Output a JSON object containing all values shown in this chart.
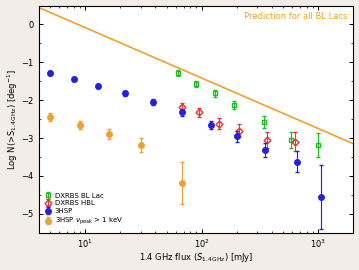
{
  "title": "Prediction for all BL Lacs",
  "xlim": [
    4,
    2000
  ],
  "ylim": [
    -5.5,
    0.5
  ],
  "line_color": "#f0a030",
  "line_x": [
    4,
    2000
  ],
  "line_y": [
    0.45,
    -3.15
  ],
  "dxrbs_bllac_x": [
    63,
    90,
    130,
    190,
    340,
    580,
    1000
  ],
  "dxrbs_bllac_y": [
    -1.28,
    -1.58,
    -1.82,
    -2.12,
    -2.58,
    -3.05,
    -3.18
  ],
  "dxrbs_bllac_yerr": [
    0.07,
    0.08,
    0.09,
    0.11,
    0.16,
    0.22,
    0.32
  ],
  "dxrbs_bllac_color": "#22bb22",
  "dxrbs_hbl_x": [
    68,
    95,
    140,
    210,
    360,
    630
  ],
  "dxrbs_hbl_y": [
    -2.18,
    -2.32,
    -2.62,
    -2.8,
    -3.05,
    -3.1
  ],
  "dxrbs_hbl_yerr": [
    0.11,
    0.12,
    0.14,
    0.17,
    0.2,
    0.25
  ],
  "dxrbs_hbl_color": "#ee3333",
  "hsp3_x": [
    5,
    8,
    13,
    22,
    38,
    68,
    120,
    200,
    350,
    650,
    1050
  ],
  "hsp3_y": [
    -1.28,
    -1.44,
    -1.62,
    -1.82,
    -2.05,
    -2.32,
    -2.65,
    -2.95,
    -3.32,
    -3.62,
    -4.55
  ],
  "hsp3_yerr_lo": [
    0.05,
    0.05,
    0.06,
    0.07,
    0.08,
    0.09,
    0.11,
    0.14,
    0.19,
    0.28,
    0.85
  ],
  "hsp3_yerr_hi": [
    0.05,
    0.05,
    0.06,
    0.07,
    0.08,
    0.09,
    0.11,
    0.14,
    0.19,
    0.28,
    0.85
  ],
  "hsp3_color": "#2222dd",
  "hsp3_1kev_x": [
    5,
    9,
    16,
    30,
    68
  ],
  "hsp3_1kev_y": [
    -2.45,
    -2.65,
    -2.9,
    -3.18,
    -4.18
  ],
  "hsp3_1kev_yerr_lo": [
    0.1,
    0.1,
    0.13,
    0.18,
    0.55
  ],
  "hsp3_1kev_yerr_hi": [
    0.1,
    0.1,
    0.13,
    0.18,
    0.55
  ],
  "hsp3_1kev_color": "#f0a030",
  "legend_labels": [
    "DXRBS BL Lac",
    "DXRBS HBL",
    "3HSP",
    "3HSP $\\nu_{\\rm peak}$ > 1 keV"
  ],
  "bg_color": "#f2ede6",
  "plot_bg_color": "#ffffff"
}
